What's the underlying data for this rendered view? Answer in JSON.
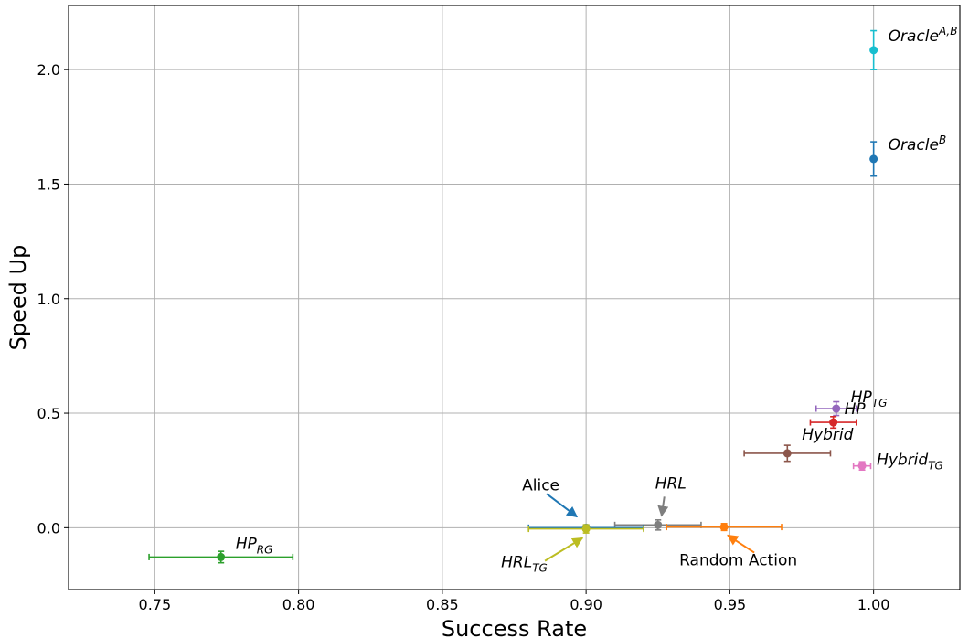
{
  "chart_data": {
    "type": "scatter",
    "xlabel": "Success Rate",
    "ylabel": "Speed Up",
    "xlim": [
      0.72,
      1.03
    ],
    "ylim": [
      -0.27,
      2.28
    ],
    "xticks": [
      "0.75",
      "0.80",
      "0.85",
      "0.90",
      "0.95",
      "1.00"
    ],
    "yticks": [
      "0.0",
      "0.5",
      "1.0",
      "1.5",
      "2.0"
    ],
    "grid": true,
    "points": [
      {
        "id": "oracle-ab",
        "label": "Oracle",
        "sup": "A,B",
        "italic": true,
        "color": "#17becf",
        "x": 1.0,
        "y": 2.085,
        "xerr": 0,
        "yerr": 0.085
      },
      {
        "id": "oracle-b",
        "label": "Oracle",
        "sup": "B",
        "italic": true,
        "color": "#1f77b4",
        "x": 1.0,
        "y": 1.61,
        "xerr": 0,
        "yerr": 0.075
      },
      {
        "id": "hp-tg",
        "label": "HP",
        "sub": "TG",
        "italic": true,
        "color": "#9467bd",
        "x": 0.987,
        "y": 0.52,
        "xerr": 0.007,
        "yerr": 0.03
      },
      {
        "id": "hp",
        "label": "HP",
        "italic": true,
        "color": "#d62728",
        "x": 0.986,
        "y": 0.46,
        "xerr": 0.008,
        "yerr": 0.025
      },
      {
        "id": "hybrid",
        "label": "Hybrid",
        "italic": true,
        "color": "#8c564b",
        "x": 0.97,
        "y": 0.325,
        "xerr": 0.015,
        "yerr": 0.035
      },
      {
        "id": "hybrid-tg",
        "label": "Hybrid",
        "sub": "TG",
        "italic": true,
        "color": "#e377c2",
        "x": 0.996,
        "y": 0.27,
        "xerr": 0.003,
        "yerr": 0.018
      },
      {
        "id": "hrl",
        "label": "HRL",
        "italic": true,
        "color": "#7f7f7f",
        "x": 0.925,
        "y": 0.012,
        "xerr": 0.015,
        "yerr": 0.022
      },
      {
        "id": "random-action",
        "label": "Random Action",
        "italic": false,
        "color": "#ff7f0e",
        "x": 0.948,
        "y": 0.003,
        "xerr": 0.02,
        "yerr": 0.015
      },
      {
        "id": "alice",
        "label": "Alice",
        "italic": false,
        "color": "#1f77b4",
        "x": 0.9,
        "y": 0.0,
        "xerr": 0.02,
        "yerr": 0.01
      },
      {
        "id": "hrl-tg",
        "label": "HRL",
        "sub": "TG",
        "italic": true,
        "color": "#bcbd22",
        "x": 0.9,
        "y": -0.005,
        "xerr": 0.02,
        "yerr": 0.018
      },
      {
        "id": "hp-rg",
        "label": "HP",
        "sub": "RG",
        "italic": true,
        "color": "#2ca02c",
        "x": 0.773,
        "y": -0.128,
        "xerr": 0.025,
        "yerr": 0.025
      }
    ],
    "annotations": [
      {
        "point": "alice",
        "text_x": 0.883,
        "text_y": 0.18,
        "arrow": true
      },
      {
        "point": "hrl",
        "text_x": 0.9255,
        "text_y": 0.18,
        "arrow": true
      },
      {
        "point": "random-action",
        "text_x": 0.953,
        "text_y": -0.15,
        "arrow": true
      },
      {
        "point": "hrl-tg",
        "text_x": 0.88,
        "text_y": -0.15,
        "arrow": true
      }
    ]
  }
}
